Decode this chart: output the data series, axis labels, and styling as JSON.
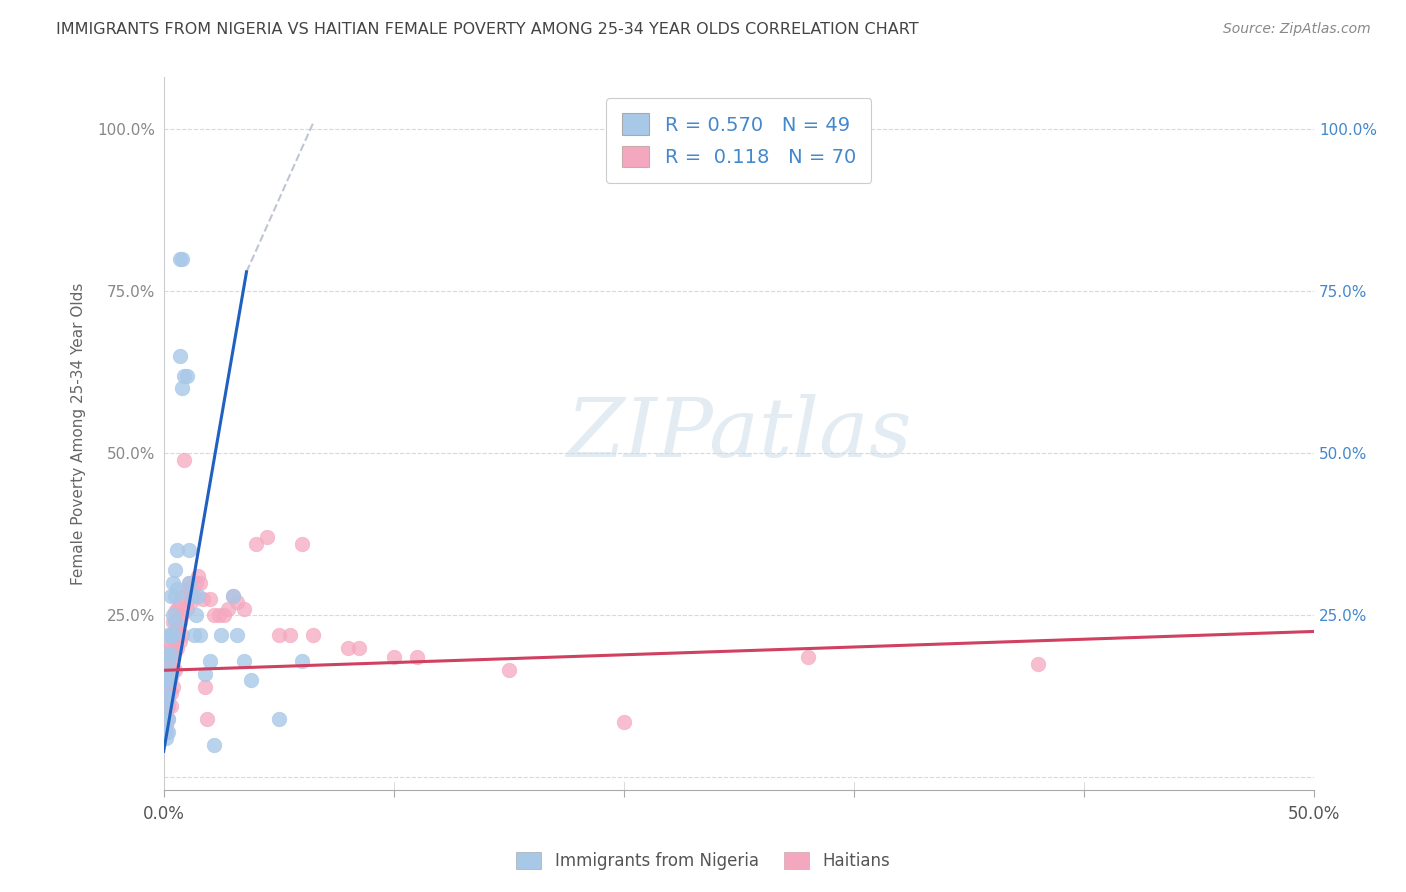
{
  "title": "IMMIGRANTS FROM NIGERIA VS HAITIAN FEMALE POVERTY AMONG 25-34 YEAR OLDS CORRELATION CHART",
  "source": "Source: ZipAtlas.com",
  "ylabel": "Female Poverty Among 25-34 Year Olds",
  "xlim": [
    0.0,
    0.5
  ],
  "ylim": [
    -0.02,
    1.08
  ],
  "ytick_positions": [
    0.0,
    0.25,
    0.5,
    0.75,
    1.0
  ],
  "xtick_positions": [
    0.0,
    0.1,
    0.2,
    0.3,
    0.4,
    0.5
  ],
  "nigeria_color": "#a8c8e8",
  "haitian_color": "#f4a8c0",
  "nigeria_edge_color": "#90b8d8",
  "haitian_edge_color": "#e090a8",
  "nigeria_line_color": "#2060c0",
  "haitian_line_color": "#d04060",
  "dashed_line_color": "#b0b8c8",
  "right_tick_color": "#4488cc",
  "watermark_color": "#ccdde8",
  "nigeria_scatter": [
    [
      0.001,
      0.19
    ],
    [
      0.001,
      0.16
    ],
    [
      0.001,
      0.15
    ],
    [
      0.001,
      0.13
    ],
    [
      0.001,
      0.11
    ],
    [
      0.001,
      0.09
    ],
    [
      0.001,
      0.07
    ],
    [
      0.001,
      0.06
    ],
    [
      0.002,
      0.22
    ],
    [
      0.002,
      0.18
    ],
    [
      0.002,
      0.15
    ],
    [
      0.002,
      0.12
    ],
    [
      0.002,
      0.09
    ],
    [
      0.002,
      0.07
    ],
    [
      0.003,
      0.28
    ],
    [
      0.003,
      0.22
    ],
    [
      0.003,
      0.19
    ],
    [
      0.003,
      0.16
    ],
    [
      0.004,
      0.3
    ],
    [
      0.004,
      0.25
    ],
    [
      0.004,
      0.22
    ],
    [
      0.005,
      0.32
    ],
    [
      0.005,
      0.28
    ],
    [
      0.005,
      0.24
    ],
    [
      0.006,
      0.29
    ],
    [
      0.006,
      0.35
    ],
    [
      0.007,
      0.65
    ],
    [
      0.007,
      0.8
    ],
    [
      0.008,
      0.6
    ],
    [
      0.008,
      0.8
    ],
    [
      0.009,
      0.62
    ],
    [
      0.01,
      0.62
    ],
    [
      0.011,
      0.3
    ],
    [
      0.011,
      0.35
    ],
    [
      0.012,
      0.28
    ],
    [
      0.013,
      0.22
    ],
    [
      0.014,
      0.25
    ],
    [
      0.015,
      0.28
    ],
    [
      0.016,
      0.22
    ],
    [
      0.018,
      0.16
    ],
    [
      0.02,
      0.18
    ],
    [
      0.022,
      0.05
    ],
    [
      0.025,
      0.22
    ],
    [
      0.03,
      0.28
    ],
    [
      0.032,
      0.22
    ],
    [
      0.035,
      0.18
    ],
    [
      0.038,
      0.15
    ],
    [
      0.05,
      0.09
    ],
    [
      0.06,
      0.18
    ]
  ],
  "haitian_scatter": [
    [
      0.001,
      0.175
    ],
    [
      0.001,
      0.16
    ],
    [
      0.001,
      0.14
    ],
    [
      0.001,
      0.12
    ],
    [
      0.001,
      0.1
    ],
    [
      0.001,
      0.08
    ],
    [
      0.002,
      0.2
    ],
    [
      0.002,
      0.175
    ],
    [
      0.002,
      0.155
    ],
    [
      0.002,
      0.13
    ],
    [
      0.002,
      0.11
    ],
    [
      0.002,
      0.09
    ],
    [
      0.003,
      0.22
    ],
    [
      0.003,
      0.2
    ],
    [
      0.003,
      0.175
    ],
    [
      0.003,
      0.155
    ],
    [
      0.003,
      0.13
    ],
    [
      0.003,
      0.11
    ],
    [
      0.004,
      0.24
    ],
    [
      0.004,
      0.215
    ],
    [
      0.004,
      0.19
    ],
    [
      0.004,
      0.165
    ],
    [
      0.004,
      0.14
    ],
    [
      0.005,
      0.255
    ],
    [
      0.005,
      0.225
    ],
    [
      0.005,
      0.195
    ],
    [
      0.005,
      0.165
    ],
    [
      0.006,
      0.26
    ],
    [
      0.006,
      0.23
    ],
    [
      0.006,
      0.2
    ],
    [
      0.007,
      0.27
    ],
    [
      0.007,
      0.24
    ],
    [
      0.007,
      0.21
    ],
    [
      0.008,
      0.28
    ],
    [
      0.008,
      0.25
    ],
    [
      0.008,
      0.22
    ],
    [
      0.009,
      0.49
    ],
    [
      0.01,
      0.29
    ],
    [
      0.01,
      0.26
    ],
    [
      0.011,
      0.3
    ],
    [
      0.012,
      0.27
    ],
    [
      0.013,
      0.28
    ],
    [
      0.014,
      0.3
    ],
    [
      0.015,
      0.31
    ],
    [
      0.016,
      0.3
    ],
    [
      0.017,
      0.275
    ],
    [
      0.018,
      0.14
    ],
    [
      0.019,
      0.09
    ],
    [
      0.02,
      0.275
    ],
    [
      0.022,
      0.25
    ],
    [
      0.024,
      0.25
    ],
    [
      0.026,
      0.25
    ],
    [
      0.028,
      0.26
    ],
    [
      0.03,
      0.28
    ],
    [
      0.032,
      0.27
    ],
    [
      0.035,
      0.26
    ],
    [
      0.04,
      0.36
    ],
    [
      0.045,
      0.37
    ],
    [
      0.05,
      0.22
    ],
    [
      0.055,
      0.22
    ],
    [
      0.06,
      0.36
    ],
    [
      0.065,
      0.22
    ],
    [
      0.08,
      0.2
    ],
    [
      0.085,
      0.2
    ],
    [
      0.1,
      0.185
    ],
    [
      0.11,
      0.185
    ],
    [
      0.15,
      0.165
    ],
    [
      0.2,
      0.085
    ],
    [
      0.28,
      0.185
    ],
    [
      0.38,
      0.175
    ]
  ],
  "background_color": "#ffffff",
  "grid_color": "#d8d8e0"
}
